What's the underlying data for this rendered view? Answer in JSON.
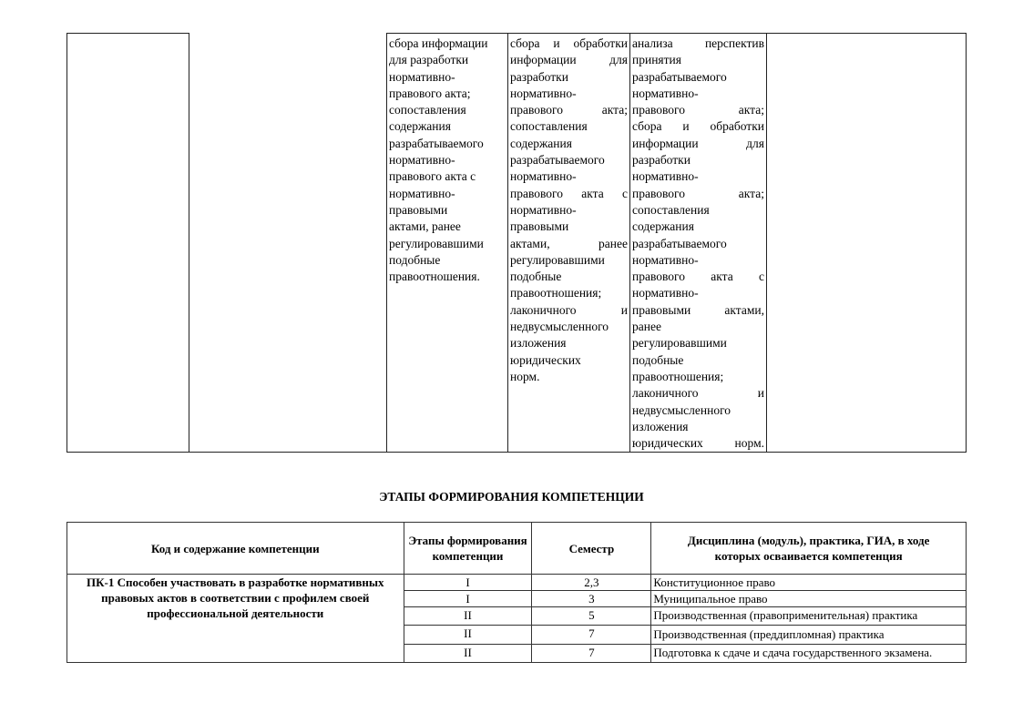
{
  "top_table": {
    "columns": [
      [],
      [],
      [
        "сбора информации",
        "для разработки",
        "нормативно-",
        "правового акта;",
        "сопоставления",
        "содержания",
        "разрабатываемого",
        "нормативно-",
        "правового акта с",
        "нормативно-",
        "правовыми",
        "актами, ранее",
        "регулировавшими",
        "подобные",
        "правоотношения."
      ],
      [
        "сбора и обработки",
        "информации для",
        "разработки",
        "нормативно-",
        "правового акта;",
        "сопоставления",
        "содержания",
        "разрабатываемого",
        "нормативно-",
        "правового акта с",
        "нормативно-",
        "правовыми",
        "актами, ранее",
        "регулировавшими",
        "подобные",
        "правоотношения;",
        "лаконичного и",
        "недвусмысленного",
        "изложения",
        "юридических",
        "норм."
      ],
      [
        "анализа перспектив",
        "принятия",
        "разрабатываемого",
        "нормативно-",
        "правового акта;",
        "сбора и обработки",
        "информации для",
        "разработки",
        "нормативно-",
        "правового акта;",
        "сопоставления",
        "содержания",
        "разрабатываемого",
        "нормативно-",
        "правового акта с",
        "нормативно-",
        "правовыми актами,",
        "ранее",
        "регулировавшими",
        "подобные",
        "правоотношения;",
        "лаконичного и",
        "недвусмысленного",
        "изложения",
        "юридических норм."
      ],
      []
    ]
  },
  "section_title": "ЭТАПЫ ФОРМИРОВАНИЯ КОМПЕТЕНЦИИ",
  "stages_table": {
    "headers": [
      "Код и содержание компетенции",
      "Этапы формирования компетенции",
      "Семестр",
      "Дисциплина (модуль), практика, ГИА, в ходе которых осваивается компетенция"
    ],
    "competence": "ПК-1 Способен участвовать в разработке нормативных правовых актов в соответствии с профилем своей профессиональной деятельности",
    "rows": [
      {
        "stage": "I",
        "semester": "2,3",
        "discipline": "Конституционное право"
      },
      {
        "stage": "I",
        "semester": "3",
        "discipline": "Муниципальное право"
      },
      {
        "stage": "II",
        "semester": "5",
        "discipline": "Производственная (правоприменительная) практика"
      },
      {
        "stage": "II",
        "semester": "7",
        "discipline": "Производственная (преддипломная) практика"
      },
      {
        "stage": "II",
        "semester": "7",
        "discipline": "Подготовка к сдаче и сдача государственного экзамена."
      }
    ]
  }
}
